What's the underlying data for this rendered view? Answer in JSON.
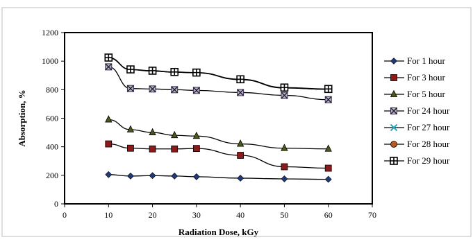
{
  "chart_data": {
    "type": "line",
    "title": "",
    "xlabel": "Radiation Dose, kGy",
    "ylabel": "Absorption, %",
    "xlim": [
      0,
      70
    ],
    "ylim": [
      0,
      1200
    ],
    "xticks": [
      0,
      10,
      20,
      30,
      40,
      50,
      60,
      70
    ],
    "yticks": [
      0,
      200,
      400,
      600,
      800,
      1000,
      1200
    ],
    "x": [
      10,
      15,
      20,
      25,
      30,
      40,
      50,
      60
    ],
    "grid": false,
    "legend_position": "right",
    "series": [
      {
        "name": "For 1 hour",
        "marker": "diamond",
        "color": "#1f3a78",
        "values": [
          205,
          195,
          198,
          195,
          190,
          180,
          175,
          172
        ]
      },
      {
        "name": "For 3 hour",
        "marker": "square",
        "color": "#8b1a1a",
        "values": [
          420,
          390,
          385,
          385,
          388,
          340,
          260,
          250
        ]
      },
      {
        "name": "For 5 hour",
        "marker": "triangle",
        "color": "#4a5a1a",
        "values": [
          590,
          520,
          500,
          480,
          475,
          420,
          390,
          385
        ]
      },
      {
        "name": "For 24 hour",
        "marker": "x-box",
        "color": "#3a2a5a",
        "values": [
          960,
          808,
          805,
          800,
          795,
          780,
          760,
          730
        ]
      },
      {
        "name": "For 27 hour",
        "marker": "x-cyan",
        "color": "#2aa8b8",
        "values": [
          1022,
          940,
          930,
          922,
          918,
          870,
          812,
          803
        ]
      },
      {
        "name": "For 28 hour",
        "marker": "circle",
        "color": "#b5581a",
        "values": [
          1022,
          940,
          932,
          922,
          918,
          872,
          812,
          803
        ]
      },
      {
        "name": "For 29 hour",
        "marker": "plus-box",
        "color": "#333333",
        "values": [
          1025,
          942,
          933,
          924,
          920,
          873,
          815,
          805
        ]
      }
    ]
  }
}
